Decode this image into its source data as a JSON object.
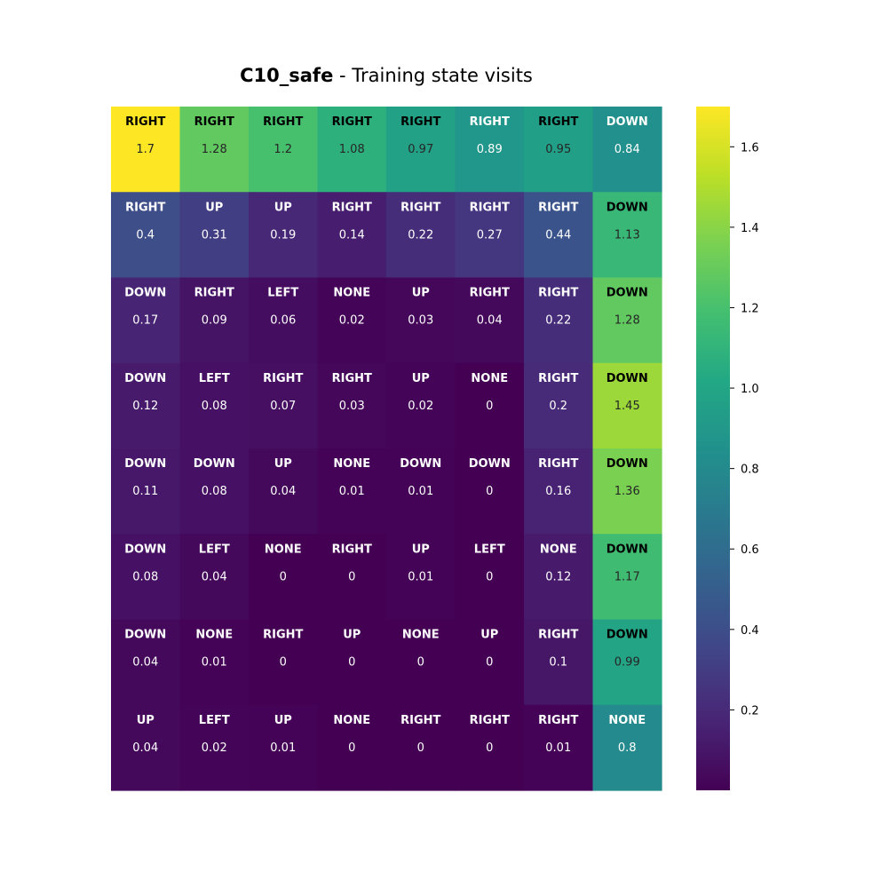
{
  "chart_data": {
    "type": "heatmap",
    "title": {
      "bold": "C10_safe",
      "rest": " - Training state visits"
    },
    "rows": 8,
    "cols": 8,
    "actions": [
      [
        "RIGHT",
        "RIGHT",
        "RIGHT",
        "RIGHT",
        "RIGHT",
        "RIGHT",
        "RIGHT",
        "DOWN"
      ],
      [
        "RIGHT",
        "UP",
        "UP",
        "RIGHT",
        "RIGHT",
        "RIGHT",
        "RIGHT",
        "DOWN"
      ],
      [
        "DOWN",
        "RIGHT",
        "LEFT",
        "NONE",
        "UP",
        "RIGHT",
        "RIGHT",
        "DOWN"
      ],
      [
        "DOWN",
        "LEFT",
        "RIGHT",
        "RIGHT",
        "UP",
        "NONE",
        "RIGHT",
        "DOWN"
      ],
      [
        "DOWN",
        "DOWN",
        "UP",
        "NONE",
        "DOWN",
        "DOWN",
        "RIGHT",
        "DOWN"
      ],
      [
        "DOWN",
        "LEFT",
        "NONE",
        "RIGHT",
        "UP",
        "LEFT",
        "NONE",
        "DOWN"
      ],
      [
        "DOWN",
        "NONE",
        "RIGHT",
        "UP",
        "NONE",
        "UP",
        "RIGHT",
        "DOWN"
      ],
      [
        "UP",
        "LEFT",
        "UP",
        "NONE",
        "RIGHT",
        "RIGHT",
        "RIGHT",
        "NONE"
      ]
    ],
    "values": [
      [
        1.7,
        1.28,
        1.2,
        1.08,
        0.97,
        0.89,
        0.95,
        0.84
      ],
      [
        0.4,
        0.31,
        0.19,
        0.14,
        0.22,
        0.27,
        0.44,
        1.13
      ],
      [
        0.17,
        0.09,
        0.06,
        0.02,
        0.03,
        0.04,
        0.22,
        1.28
      ],
      [
        0.12,
        0.08,
        0.07,
        0.03,
        0.02,
        0,
        0.2,
        1.45
      ],
      [
        0.11,
        0.08,
        0.04,
        0.01,
        0.01,
        0,
        0.16,
        1.36
      ],
      [
        0.08,
        0.04,
        0,
        0,
        0.01,
        0,
        0.12,
        1.17
      ],
      [
        0.04,
        0.01,
        0,
        0,
        0,
        0,
        0.1,
        0.99
      ],
      [
        0.04,
        0.02,
        0.01,
        0,
        0,
        0,
        0.01,
        0.8
      ]
    ],
    "colormap": "viridis",
    "vmin": 0,
    "vmax": 1.7,
    "colorbar": {
      "ticks": [
        0.2,
        0.4,
        0.6,
        0.8,
        1.0,
        1.2,
        1.4,
        1.6
      ],
      "tick_labels": [
        "0.2",
        "0.4",
        "0.6",
        "0.8",
        "1.0",
        "1.2",
        "1.4",
        "1.6"
      ]
    },
    "xlabel": "",
    "ylabel": ""
  }
}
